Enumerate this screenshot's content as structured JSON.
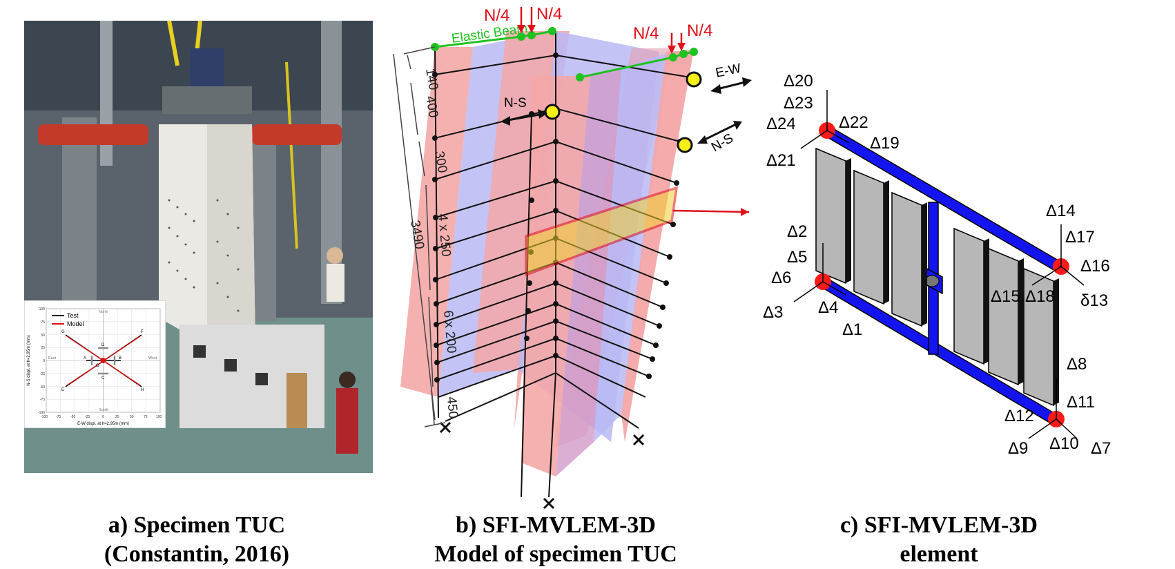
{
  "captions": {
    "a_line1": "a) Specimen  TUC",
    "a_line2": "(Constantin, 2016)",
    "b_line1": "b) SFI-MVLEM-3D",
    "b_line2": "Model of specimen  TUC",
    "c_line1": "c) SFI-MVLEM-3D",
    "c_line2": "element"
  },
  "panel_a": {
    "inset": {
      "legend_test": "Test",
      "legend_model": "Model",
      "xlabel": "E-W displ. at h=2.95m (mm)",
      "ylabel": "N-S displ. at h=2.95m (mm)",
      "label_north": "North",
      "label_south": "South",
      "label_east": "East",
      "label_west": "West",
      "point_labels": [
        "A",
        "B",
        "C",
        "D",
        "E",
        "F",
        "G",
        "H",
        "O"
      ],
      "x_ticks": [
        "-100",
        "-75",
        "-50",
        "-25",
        "0",
        "25",
        "50",
        "75",
        "100"
      ],
      "y_ticks": [
        "100",
        "75",
        "50",
        "25",
        "0",
        "-25",
        "-50",
        "-75",
        "-100"
      ]
    }
  },
  "panel_b": {
    "elastic_beam": "Elastic Beam",
    "load_label": "N/4",
    "direction_ns": "N-S",
    "direction_ew": "E-W",
    "dim_140": "140",
    "dim_400": "400",
    "dim_300": "300",
    "dim_4x250": "4 x 250",
    "dim_6x200": "6 x 200",
    "dim_450": "450",
    "dim_total": "3490"
  },
  "panel_c": {
    "dof_labels": {
      "d1": "Δ1",
      "d2": "Δ2",
      "d3": "Δ3",
      "d4": "Δ4",
      "d5": "Δ5",
      "d6": "Δ6",
      "d7": "Δ7",
      "d8": "Δ8",
      "d9": "Δ9",
      "d10": "Δ10",
      "d11": "Δ11",
      "d12": "Δ12",
      "d13": "δ13",
      "d14": "Δ14",
      "d15": "Δ15",
      "d16": "Δ16",
      "d17": "Δ17",
      "d18": "Δ18",
      "d19": "Δ19",
      "d20": "Δ20",
      "d21": "Δ21",
      "d22": "Δ22",
      "d23": "Δ23",
      "d24": "Δ24"
    }
  },
  "colors": {
    "beam_blue": "#1414f0",
    "node_red": "#ff1a1a",
    "elastic_green": "#1fc21f",
    "load_red": "#e0101a",
    "wall_red": "#f4a7a7",
    "wall_blue": "#b9b9f4",
    "highlight_yellow": "#f0d030"
  }
}
